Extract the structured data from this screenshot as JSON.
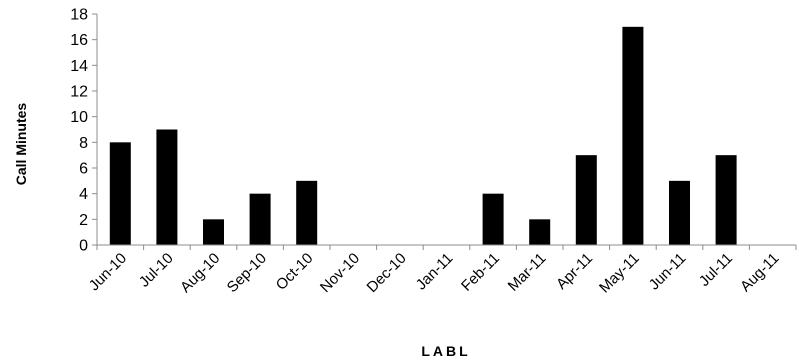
{
  "chart_data": {
    "type": "bar",
    "categories": [
      "Jun-10",
      "Jul-10",
      "Aug-10",
      "Sep-10",
      "Oct-10",
      "Nov-10",
      "Dec-10",
      "Jan-11",
      "Feb-11",
      "Mar-11",
      "Apr-11",
      "May-11",
      "Jun-11",
      "Jul-11",
      "Aug-11"
    ],
    "values": [
      8,
      9,
      2,
      4,
      5,
      0,
      0,
      0,
      4,
      2,
      7,
      17,
      5,
      7,
      0
    ],
    "title": "",
    "xlabel": "LABL",
    "ylabel": "Call Minutes",
    "ylim": [
      0,
      18
    ],
    "yticks": [
      0,
      2,
      4,
      6,
      8,
      10,
      12,
      14,
      16,
      18
    ],
    "bar_color": "#000000",
    "axis_color": "#8c8c8c",
    "grid": false,
    "legend": "none"
  }
}
